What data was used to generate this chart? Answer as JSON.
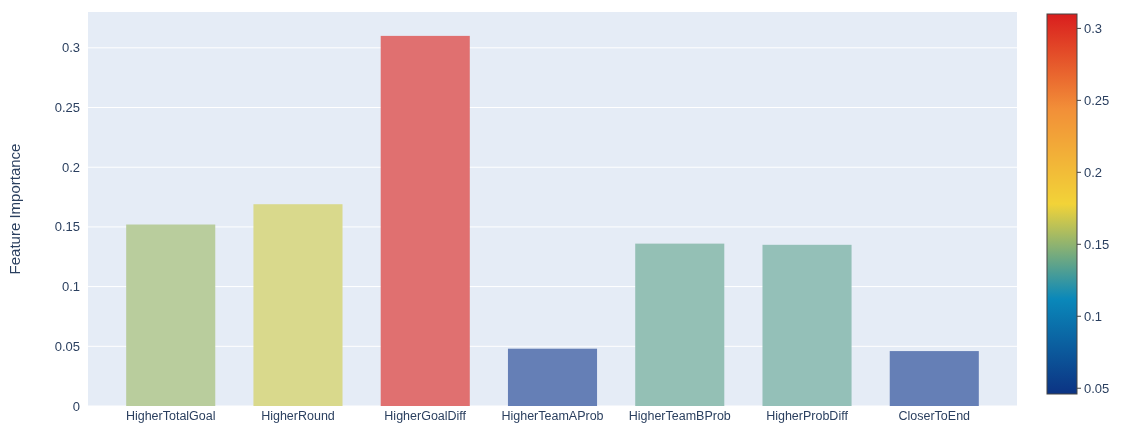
{
  "chart_data": {
    "type": "bar",
    "ylabel": "Feature Importance",
    "categories": [
      "HigherTotalGoal",
      "HigherRound",
      "HigherGoalDiff",
      "HigherTeamAProb",
      "HigherTeamBProb",
      "HigherProbDiff",
      "CloserToEnd"
    ],
    "values": [
      0.152,
      0.169,
      0.31,
      0.048,
      0.136,
      0.135,
      0.046
    ],
    "colors": [
      "#b9cd9d",
      "#d9d98c",
      "#e07070",
      "#657fb6",
      "#94c0b5",
      "#94c0b8",
      "#657fb6"
    ],
    "ylim": [
      0,
      0.33
    ],
    "yticks": [
      0,
      0.05,
      0.1,
      0.15,
      0.2,
      0.25,
      0.3
    ],
    "clim": [
      0.046,
      0.31
    ],
    "cticks": [
      0.05,
      0.1,
      0.15,
      0.2,
      0.25,
      0.3
    ],
    "grid": "y"
  }
}
